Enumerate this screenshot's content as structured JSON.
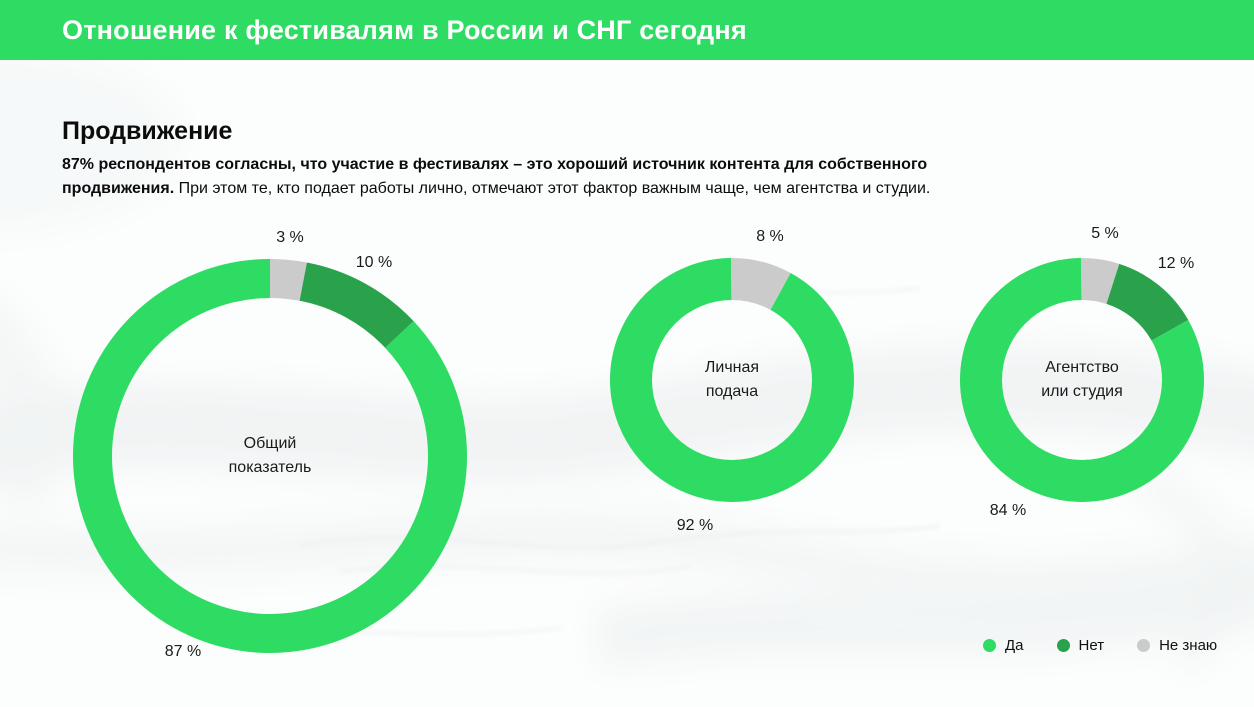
{
  "header": {
    "title": "Отношение к фестивалям в России и СНГ сегодня",
    "bg_color": "#2EDB63",
    "text_color": "#FFFFFF"
  },
  "section": {
    "title": "Продвижение",
    "lead": {
      "line1_bold": "87% респондентов согласны, что участие в фестивалях – это хороший источник контента для собственного",
      "line2_bold": "продвижения.",
      "line2_regular": " При этом те, кто подает работы лично, отмечают этот фактор важным чаще, чем агентства и студии."
    }
  },
  "colors": {
    "yes": "#2EDB63",
    "no": "#29A24B",
    "dont_know": "#CBCBCB"
  },
  "legend": {
    "items": [
      {
        "label": "Да",
        "color_key": "yes"
      },
      {
        "label": "Нет",
        "color_key": "no"
      },
      {
        "label": "Не знаю",
        "color_key": "dont_know"
      }
    ]
  },
  "chart_data": [
    {
      "type": "pie",
      "subtype": "donut",
      "title": "Общий показатель",
      "center_label_lines": [
        "Общий",
        "показатель"
      ],
      "unit": "%",
      "start_angle_deg": 0,
      "direction": "clockwise",
      "segments": [
        {
          "label": "Не знаю",
          "value": 3,
          "display": "3 %",
          "color_key": "dont_know"
        },
        {
          "label": "Нет",
          "value": 10,
          "display": "10 %",
          "color_key": "no"
        },
        {
          "label": "Да",
          "value": 87,
          "display": "87 %",
          "color_key": "yes"
        }
      ]
    },
    {
      "type": "pie",
      "subtype": "donut",
      "title": "Личная подача",
      "center_label_lines": [
        "Личная",
        "подача"
      ],
      "unit": "%",
      "start_angle_deg": 0,
      "direction": "clockwise",
      "segments": [
        {
          "label": "Не знаю",
          "value": 8,
          "display": "8 %",
          "color_key": "dont_know"
        },
        {
          "label": "Да",
          "value": 92,
          "display": "92 %",
          "color_key": "yes"
        }
      ]
    },
    {
      "type": "pie",
      "subtype": "donut",
      "title": "Агентство или студия",
      "center_label_lines": [
        "Агентство",
        "или студия"
      ],
      "unit": "%",
      "start_angle_deg": 0,
      "direction": "clockwise",
      "segments": [
        {
          "label": "Не знаю",
          "value": 5,
          "display": "5 %",
          "color_key": "dont_know"
        },
        {
          "label": "Нет",
          "value": 12,
          "display": "12 %",
          "color_key": "no"
        },
        {
          "label": "Да",
          "value": 84,
          "display": "84 %",
          "color_key": "yes"
        }
      ]
    }
  ]
}
